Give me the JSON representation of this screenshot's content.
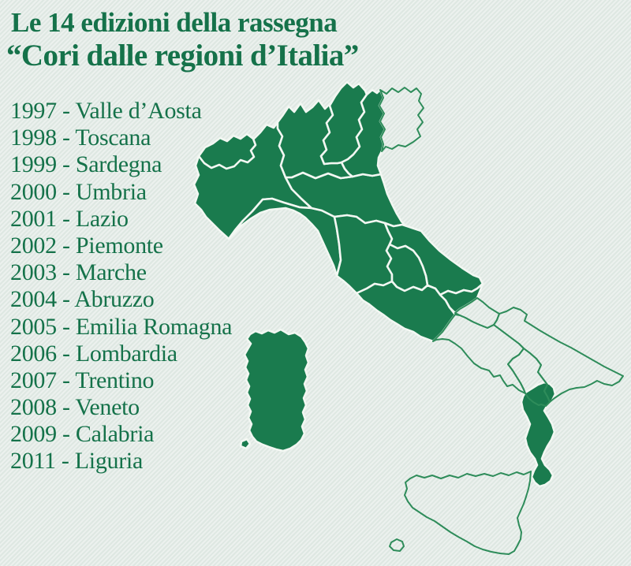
{
  "page": {
    "background_color": "#e4ece7",
    "text_color": "#15724a"
  },
  "title": {
    "line1": "Le 14 edizioni della rassegna",
    "line2": "“Cori dalle regioni d’Italia”"
  },
  "list": {
    "separator": " - ",
    "editions": [
      {
        "year": "1997",
        "region": "Valle d’Aosta"
      },
      {
        "year": "1998",
        "region": "Toscana"
      },
      {
        "year": "1999",
        "region": "Sardegna"
      },
      {
        "year": "2000",
        "region": "Umbria"
      },
      {
        "year": "2001",
        "region": "Lazio"
      },
      {
        "year": "2002",
        "region": "Piemonte"
      },
      {
        "year": "2003",
        "region": "Marche"
      },
      {
        "year": "2004",
        "region": "Abruzzo"
      },
      {
        "year": "2005",
        "region": "Emilia Romagna"
      },
      {
        "year": "2006",
        "region": "Lombardia"
      },
      {
        "year": "2007",
        "region": "Trentino"
      },
      {
        "year": "2008",
        "region": "Veneto"
      },
      {
        "year": "2009",
        "region": "Calabria"
      },
      {
        "year": "2011",
        "region": "Liguria"
      }
    ]
  },
  "map": {
    "fill_color": "#1a7b4e",
    "outline_color": "#2e8c5a",
    "border_color": "#f2f7f2",
    "filled_regions": [
      "piemonte",
      "liguria",
      "emilia",
      "lombardia",
      "trentino",
      "veneto",
      "toscana",
      "marche",
      "umbria",
      "lazio",
      "abruzzo",
      "valle-daosta",
      "calabria",
      "sardegna",
      "sardegna-islet"
    ],
    "outlined_regions": [
      "friuli",
      "molise",
      "campania",
      "puglia",
      "basilicata",
      "sicilia",
      "pantelleria"
    ]
  }
}
